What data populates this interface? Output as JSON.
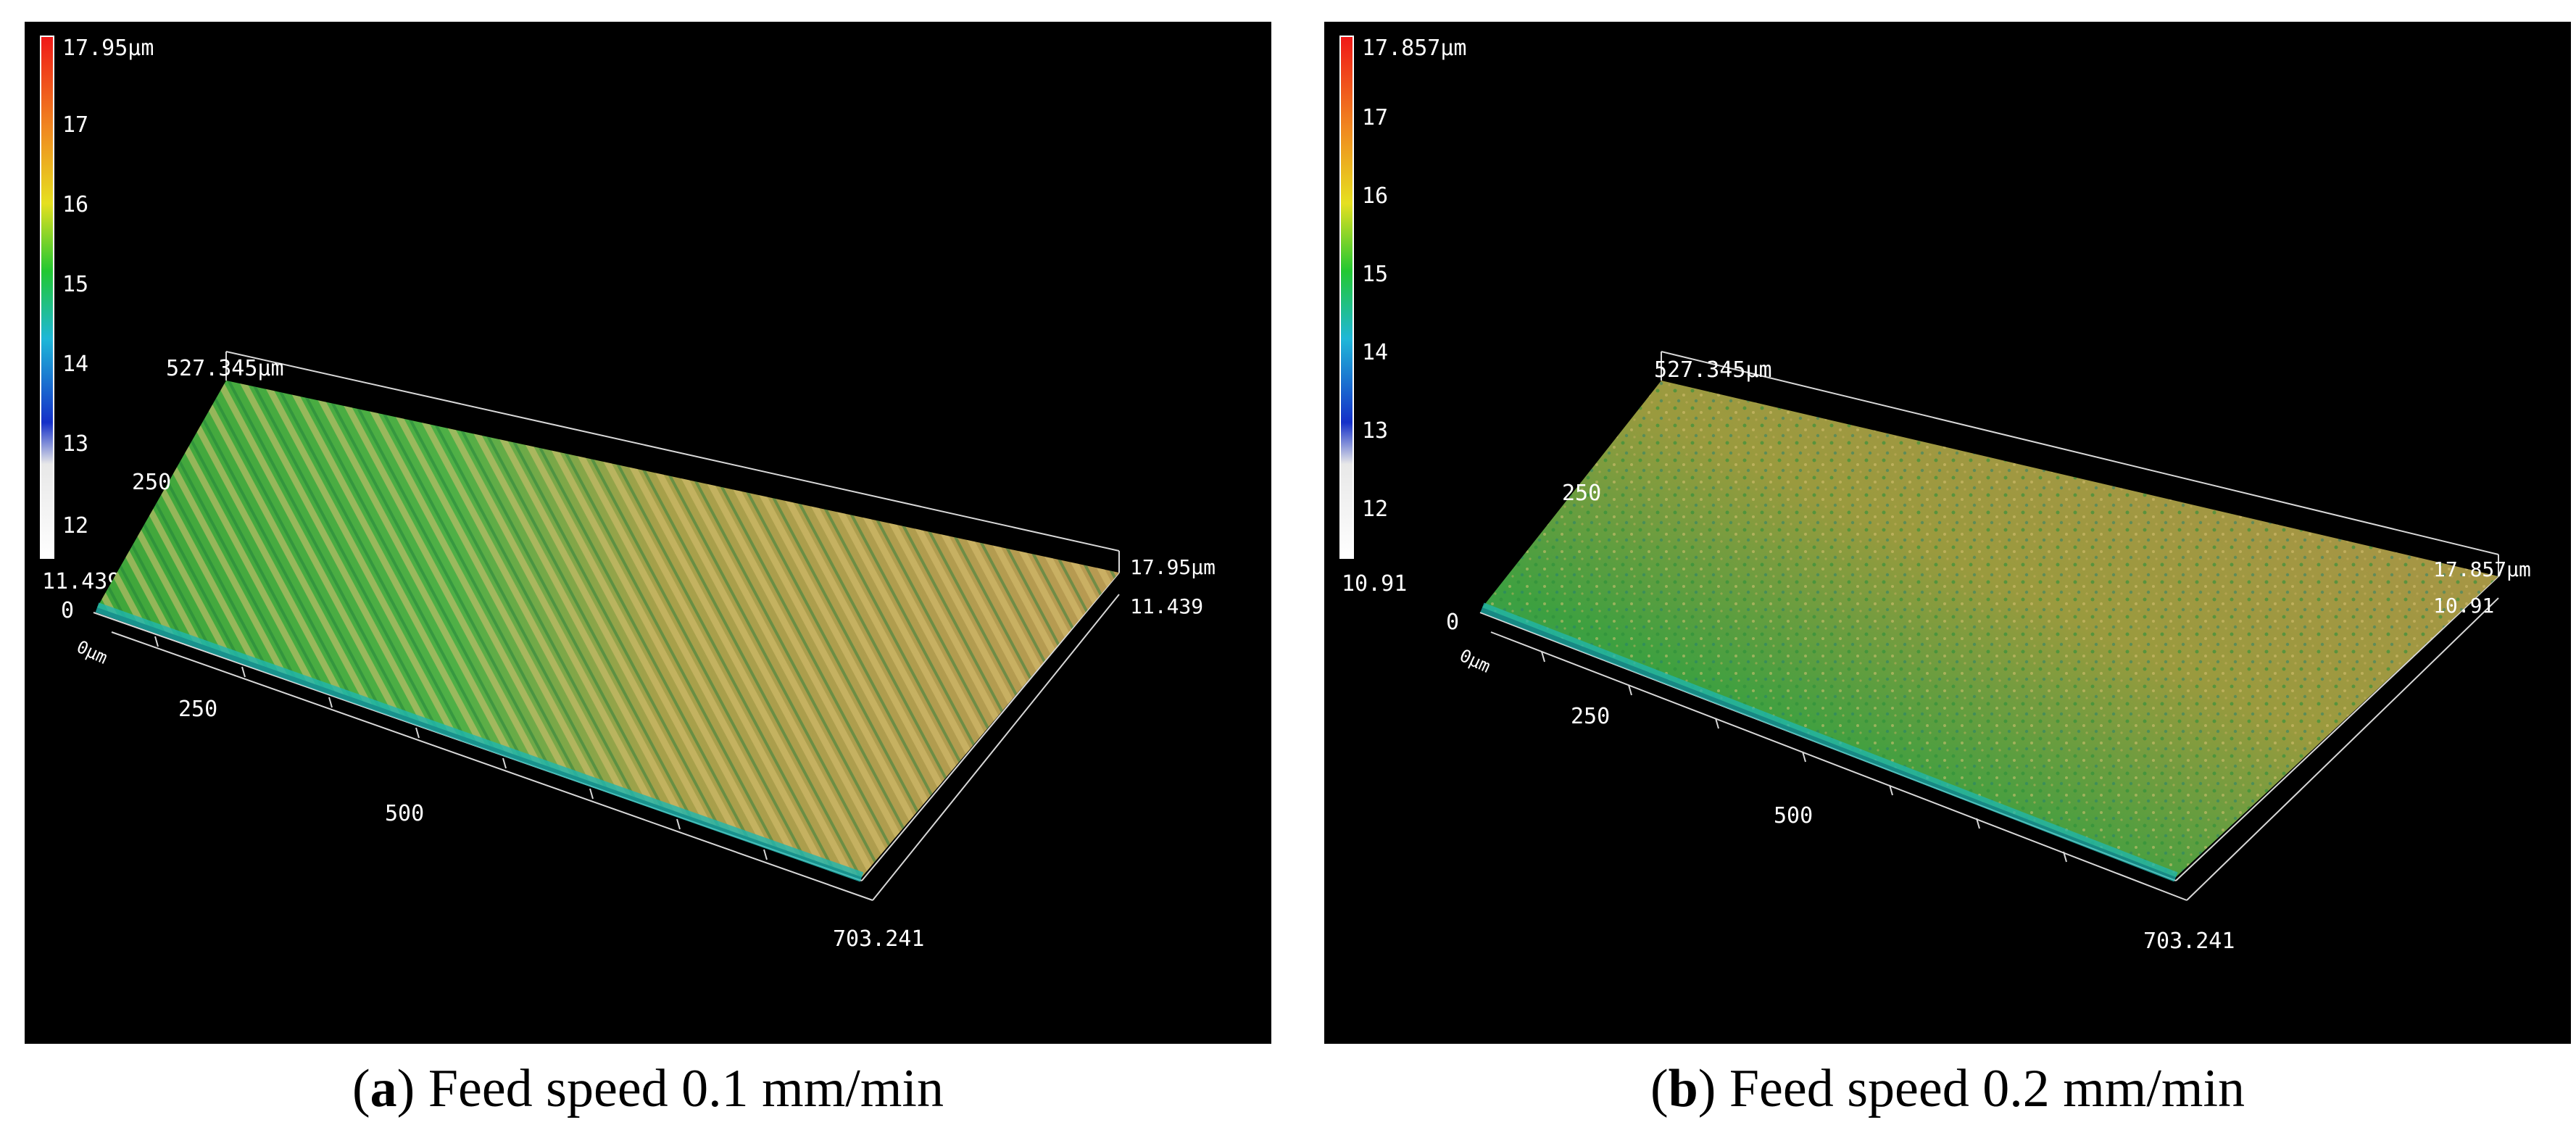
{
  "panels": [
    {
      "id": "a",
      "scale_top": "17.95µm",
      "scale_ticks": [
        "17",
        "16",
        "15",
        "14",
        "13",
        "12"
      ],
      "scale_bottom": "11.439",
      "y_extent": "527.345µm",
      "y_mid": "250",
      "y_zero": "0",
      "x_origin": "0µm",
      "x_ticks": [
        "250",
        "500"
      ],
      "x_extent": "703.241",
      "z_max": "17.95µm",
      "z_min": "11.439",
      "caption_letter": "a",
      "caption_text": "Feed speed 0.1 mm/min"
    },
    {
      "id": "b",
      "scale_top": "17.857µm",
      "scale_ticks": [
        "17",
        "16",
        "15",
        "14",
        "13",
        "12"
      ],
      "scale_bottom": "10.91",
      "y_extent": "527.345µm",
      "y_mid": "250",
      "y_zero": "0",
      "x_origin": "0µm",
      "x_ticks": [
        "250",
        "500"
      ],
      "x_extent": "703.241",
      "z_max": "17.857µm",
      "z_min": "10.91",
      "caption_letter": "b",
      "caption_text": "Feed speed 0.2 mm/min"
    }
  ],
  "colors": {
    "background": "#000000",
    "surface_gold": "#b8a24a",
    "surface_green": "#3fa63a",
    "surface_cyan": "#1fb7b0",
    "grid_line": "#d8d8d8"
  }
}
